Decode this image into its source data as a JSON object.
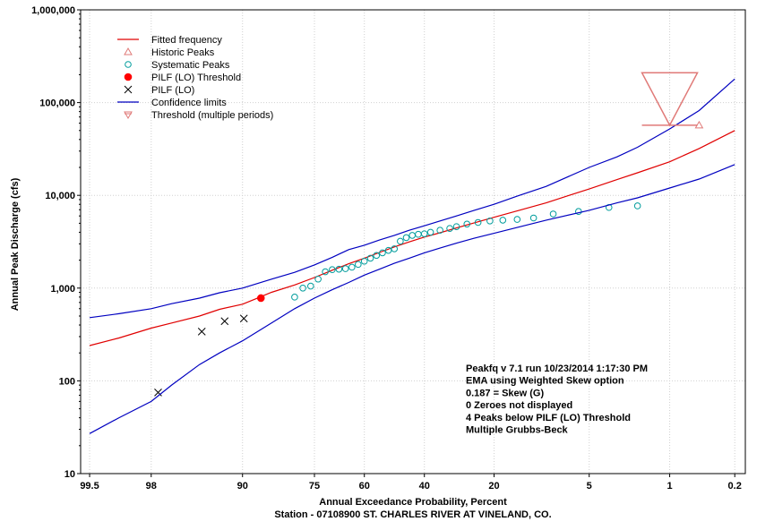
{
  "chart_data": {
    "type": "scatter",
    "x_scale": "normal-probability (exceedance %, reversed)",
    "y_scale": "log",
    "xlabel": "Annual Exceedance Probability, Percent",
    "subtitle": "Station - 07108900  ST. CHARLES RIVER AT VINELAND, CO.",
    "ylabel": "Annual Peak Discharge (cfs)",
    "x_ticks": [
      {
        "p": 99.5,
        "label": "99.5"
      },
      {
        "p": 98,
        "label": "98"
      },
      {
        "p": 90,
        "label": "90"
      },
      {
        "p": 75,
        "label": "75"
      },
      {
        "p": 60,
        "label": "60"
      },
      {
        "p": 40,
        "label": "40"
      },
      {
        "p": 20,
        "label": "20"
      },
      {
        "p": 5,
        "label": "5"
      },
      {
        "p": 1,
        "label": "1"
      },
      {
        "p": 0.2,
        "label": "0.2"
      }
    ],
    "y_ticks": [
      {
        "v": 10,
        "label": "10"
      },
      {
        "v": 100,
        "label": "100"
      },
      {
        "v": 1000,
        "label": "1,000"
      },
      {
        "v": 10000,
        "label": "10,000"
      },
      {
        "v": 100000,
        "label": "100,000"
      },
      {
        "v": 1000000,
        "label": "1,000,000"
      }
    ],
    "ylim": [
      10,
      1000000
    ],
    "xlim": [
      99.6,
      0.15
    ],
    "grid": true,
    "legend_position": "top-left",
    "colors": {
      "fitted": "#e00000",
      "historic": "#e07a78",
      "systematic": "#009c9c",
      "pilf_threshold": "#ff0000",
      "pilf_lo": "#000000",
      "confidence": "#0000c0",
      "threshold": "#e07a78"
    },
    "series": [
      {
        "name": "Fitted frequency",
        "kind": "line",
        "color": "#e00000",
        "points": [
          [
            99.5,
            240
          ],
          [
            99,
            290
          ],
          [
            98,
            370
          ],
          [
            97,
            420
          ],
          [
            95,
            500
          ],
          [
            93,
            590
          ],
          [
            90,
            670
          ],
          [
            88,
            760
          ],
          [
            85,
            900
          ],
          [
            80,
            1080
          ],
          [
            75,
            1300
          ],
          [
            70,
            1560
          ],
          [
            65,
            1830
          ],
          [
            60,
            2100
          ],
          [
            55,
            2420
          ],
          [
            50,
            2780
          ],
          [
            45,
            3150
          ],
          [
            40,
            3550
          ],
          [
            35,
            3950
          ],
          [
            30,
            4450
          ],
          [
            25,
            5050
          ],
          [
            20,
            5800
          ],
          [
            15,
            6800
          ],
          [
            10,
            8300
          ],
          [
            7,
            10000
          ],
          [
            5,
            11700
          ],
          [
            3,
            14800
          ],
          [
            2,
            17500
          ],
          [
            1,
            23000
          ],
          [
            0.5,
            32000
          ],
          [
            0.2,
            50000
          ]
        ]
      },
      {
        "name": "Historic Peaks",
        "kind": "triangle",
        "color": "#e07a78",
        "points": [
          [
            0.5,
            57000
          ]
        ]
      },
      {
        "name": "Systematic Peaks",
        "kind": "circle",
        "color": "#009c9c",
        "points": [
          [
            80,
            800
          ],
          [
            78,
            1000
          ],
          [
            76,
            1050
          ],
          [
            74,
            1250
          ],
          [
            72,
            1500
          ],
          [
            70,
            1580
          ],
          [
            68,
            1600
          ],
          [
            66,
            1620
          ],
          [
            64,
            1680
          ],
          [
            62,
            1800
          ],
          [
            60,
            1950
          ],
          [
            58,
            2100
          ],
          [
            56,
            2250
          ],
          [
            54,
            2400
          ],
          [
            52,
            2550
          ],
          [
            50,
            2650
          ],
          [
            48,
            3200
          ],
          [
            46,
            3500
          ],
          [
            44,
            3700
          ],
          [
            42,
            3800
          ],
          [
            40,
            3850
          ],
          [
            38,
            4000
          ],
          [
            35,
            4200
          ],
          [
            32,
            4400
          ],
          [
            30,
            4600
          ],
          [
            27,
            4900
          ],
          [
            24,
            5100
          ],
          [
            21,
            5300
          ],
          [
            18,
            5400
          ],
          [
            15,
            5500
          ],
          [
            12,
            5700
          ],
          [
            9,
            6300
          ],
          [
            6,
            6700
          ],
          [
            3.5,
            7400
          ],
          [
            2,
            7700
          ]
        ]
      },
      {
        "name": "PILF (LO) Threshold",
        "kind": "dot",
        "color": "#ff0000",
        "points": [
          [
            87,
            780
          ]
        ]
      },
      {
        "name": "PILF (LO)",
        "kind": "cross",
        "color": "#000000",
        "points": [
          [
            97.7,
            75
          ],
          [
            94.8,
            340
          ],
          [
            92.4,
            440
          ],
          [
            89.8,
            470
          ]
        ]
      },
      {
        "name": "Confidence limits",
        "kind": "line",
        "color": "#0000c0",
        "points_upper": [
          [
            99.5,
            480
          ],
          [
            99,
            530
          ],
          [
            98,
            600
          ],
          [
            97,
            680
          ],
          [
            95,
            780
          ],
          [
            93,
            890
          ],
          [
            90,
            1000
          ],
          [
            85,
            1250
          ],
          [
            80,
            1480
          ],
          [
            75,
            1780
          ],
          [
            70,
            2150
          ],
          [
            65,
            2600
          ],
          [
            60,
            2900
          ],
          [
            55,
            3300
          ],
          [
            50,
            3700
          ],
          [
            45,
            4200
          ],
          [
            40,
            4700
          ],
          [
            35,
            5300
          ],
          [
            30,
            6000
          ],
          [
            25,
            6900
          ],
          [
            20,
            8000
          ],
          [
            15,
            9800
          ],
          [
            10,
            12500
          ],
          [
            5,
            20000
          ],
          [
            3,
            26000
          ],
          [
            2,
            33000
          ],
          [
            1,
            52000
          ],
          [
            0.5,
            82000
          ],
          [
            0.2,
            180000
          ]
        ],
        "points_lower": [
          [
            99.5,
            27
          ],
          [
            99,
            40
          ],
          [
            98,
            60
          ],
          [
            97,
            90
          ],
          [
            95,
            150
          ],
          [
            93,
            200
          ],
          [
            90,
            270
          ],
          [
            85,
            420
          ],
          [
            80,
            600
          ],
          [
            75,
            780
          ],
          [
            70,
            960
          ],
          [
            65,
            1150
          ],
          [
            60,
            1380
          ],
          [
            55,
            1600
          ],
          [
            50,
            1850
          ],
          [
            45,
            2100
          ],
          [
            40,
            2400
          ],
          [
            35,
            2700
          ],
          [
            30,
            3050
          ],
          [
            25,
            3450
          ],
          [
            20,
            3900
          ],
          [
            15,
            4500
          ],
          [
            10,
            5400
          ],
          [
            5,
            6900
          ],
          [
            3,
            8300
          ],
          [
            2,
            9400
          ],
          [
            1,
            12000
          ],
          [
            0.5,
            15000
          ],
          [
            0.2,
            21500
          ]
        ]
      },
      {
        "name": "Threshold (multiple periods)",
        "kind": "threshold",
        "color": "#e07a78",
        "points": [
          [
            1,
            57000
          ]
        ],
        "range": [
          57000,
          210000
        ]
      }
    ],
    "annotations": [
      "Peakfq v 7.1 run 10/23/2014 1:17:30 PM",
      "EMA using Weighted Skew option",
      "0.187 = Skew (G)",
      "0 Zeroes not displayed",
      "4 Peaks below PILF (LO) Threshold",
      "Multiple Grubbs-Beck"
    ]
  }
}
